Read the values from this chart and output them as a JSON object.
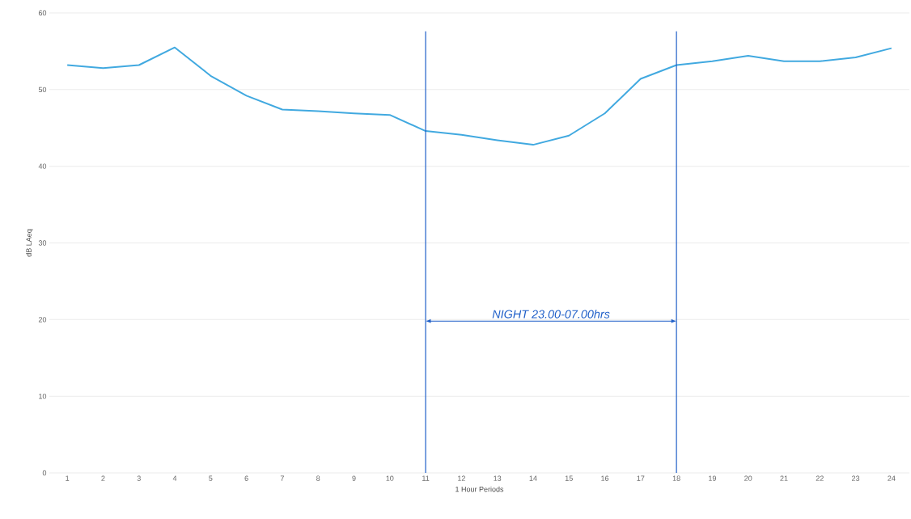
{
  "chart_data": {
    "type": "line",
    "xlabel": "1 Hour Periods",
    "ylabel": "dB LAeq",
    "categories": [
      "1",
      "2",
      "3",
      "4",
      "5",
      "6",
      "7",
      "8",
      "9",
      "10",
      "11",
      "12",
      "13",
      "14",
      "15",
      "16",
      "17",
      "18",
      "19",
      "20",
      "21",
      "22",
      "23",
      "24"
    ],
    "series": [
      {
        "color": "#41a9e0",
        "values": [
          53.2,
          52.8,
          53.2,
          55.5,
          51.8,
          49.2,
          47.4,
          47.2,
          46.9,
          46.7,
          44.6,
          44.1,
          43.4,
          42.8,
          44.0,
          46.9,
          51.4,
          53.2,
          53.7,
          54.4,
          53.7,
          53.7,
          54.2,
          55.4
        ]
      }
    ],
    "ylim": [
      0,
      60
    ],
    "yticks": [
      0,
      10,
      20,
      30,
      40,
      50,
      60
    ],
    "grid": "y",
    "marker": "none",
    "line_style": "solid",
    "ref_lines": [
      {
        "axis": "x",
        "value": "11",
        "color": "#1f5fc8"
      },
      {
        "axis": "x",
        "value": "18",
        "color": "#1f5fc8"
      }
    ],
    "annotations": [
      "NIGHT 23.00-07.00hrs"
    ]
  }
}
